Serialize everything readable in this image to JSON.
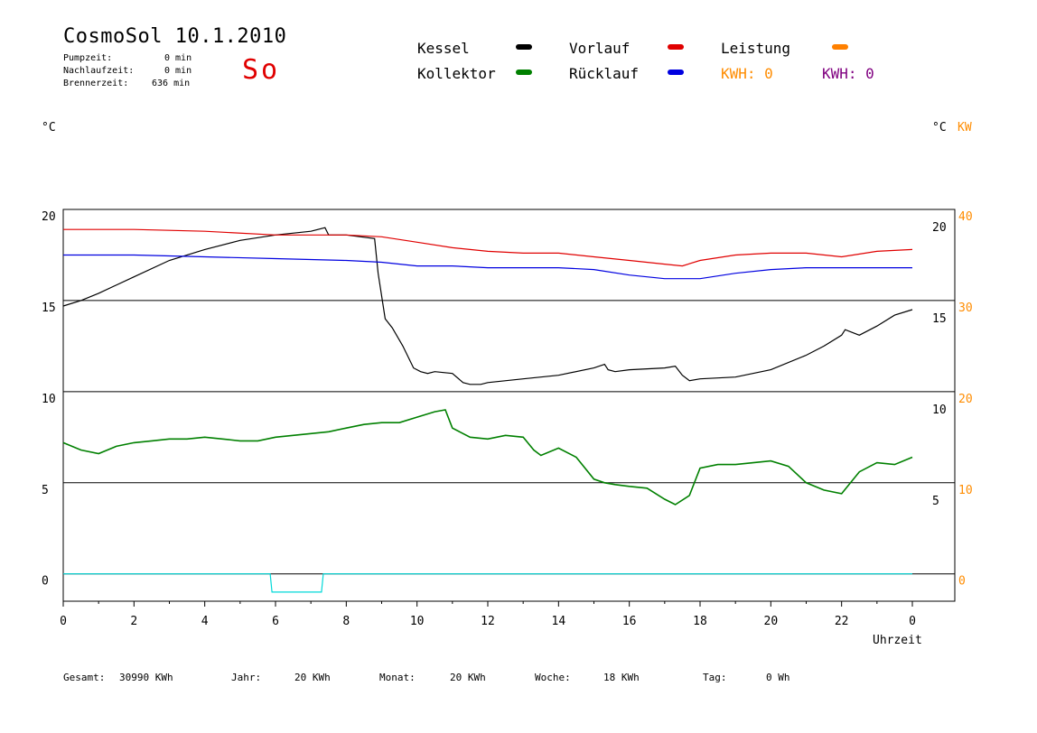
{
  "header": {
    "title": "CosmoSol 10.1.2010",
    "stats": [
      {
        "label": "Pumpzeit:",
        "value": "0 min"
      },
      {
        "label": "Nachlaufzeit:",
        "value": "0 min"
      },
      {
        "label": "Brennerzeit:",
        "value": "636 min"
      }
    ],
    "status": "So"
  },
  "legend": {
    "items": [
      {
        "label": "Kessel",
        "color": "#000000"
      },
      {
        "label": "Kollektor",
        "color": "#008000"
      },
      {
        "label": "Vorlauf",
        "color": "#e00000"
      },
      {
        "label": "Rücklauf",
        "color": "#0000e0"
      },
      {
        "label": "Leistung",
        "color": "#ff8000"
      }
    ],
    "kwh": [
      {
        "text": "KWH: 0",
        "color": "#ff8c00"
      },
      {
        "text": "KWH: 0",
        "color": "#800080"
      }
    ]
  },
  "axis_units": {
    "left": "°C",
    "right": "°C",
    "right2": "KW"
  },
  "footer": [
    {
      "label": "Gesamt:",
      "value": "30990 KWh"
    },
    {
      "label": "Jahr:",
      "value": "20 KWh"
    },
    {
      "label": "Monat:",
      "value": "20 KWh"
    },
    {
      "label": "Woche:",
      "value": "18 KWh"
    },
    {
      "label": "Tag:",
      "value": "0 Wh"
    }
  ],
  "chart_data": {
    "type": "line",
    "xlabel": "Uhrzeit",
    "xlim": [
      0,
      24
    ],
    "x_ticks": [
      "0",
      "2",
      "4",
      "6",
      "8",
      "10",
      "12",
      "14",
      "16",
      "18",
      "20",
      "22",
      "0"
    ],
    "ylim": [
      -1.5,
      20
    ],
    "left_ticks": [
      {
        "v": 20,
        "label": "20"
      },
      {
        "v": 15,
        "label": "15"
      },
      {
        "v": 10,
        "label": "10"
      },
      {
        "v": 5,
        "label": "5"
      },
      {
        "v": 0,
        "label": "0"
      }
    ],
    "right_ticks": [
      {
        "v": 20,
        "label": "20"
      },
      {
        "v": 15,
        "label": "15"
      },
      {
        "v": 10,
        "label": "10"
      },
      {
        "v": 5,
        "label": "5"
      }
    ],
    "right2_ticks": [
      {
        "v": 20,
        "label": "40"
      },
      {
        "v": 15,
        "label": "30"
      },
      {
        "v": 10,
        "label": "20"
      },
      {
        "v": 5,
        "label": "10"
      },
      {
        "v": 0,
        "label": "0"
      }
    ],
    "grid_lines": [
      20,
      15,
      10,
      5,
      0
    ],
    "series": [
      {
        "name": "Kessel",
        "color": "#000000",
        "x": [
          0,
          0.5,
          1,
          2,
          3,
          4,
          5,
          6,
          7,
          7.4,
          7.5,
          8,
          8.8,
          8.9,
          9.1,
          9.3,
          9.6,
          9.9,
          10.1,
          10.3,
          10.5,
          11,
          11.3,
          11.5,
          11.8,
          12,
          13,
          14,
          15,
          15.3,
          15.4,
          15.6,
          16,
          17,
          17.3,
          17.5,
          17.7,
          18,
          19,
          20,
          21,
          21.5,
          22,
          22.1,
          22.5,
          23,
          23.5,
          24
        ],
        "y": [
          14.7,
          15.0,
          15.4,
          16.3,
          17.2,
          17.8,
          18.3,
          18.6,
          18.8,
          19.0,
          18.6,
          18.6,
          18.4,
          16.5,
          14.0,
          13.5,
          12.5,
          11.3,
          11.1,
          11.0,
          11.1,
          11.0,
          10.5,
          10.4,
          10.4,
          10.5,
          10.7,
          10.9,
          11.3,
          11.5,
          11.2,
          11.1,
          11.2,
          11.3,
          11.4,
          10.9,
          10.6,
          10.7,
          10.8,
          11.2,
          12.0,
          12.5,
          13.1,
          13.4,
          13.1,
          13.6,
          14.2,
          14.5
        ]
      },
      {
        "name": "Vorlauf",
        "color": "#e00000",
        "x": [
          0,
          2,
          4,
          6,
          8,
          9,
          10,
          11,
          12,
          13,
          14,
          15,
          16,
          17,
          17.5,
          18,
          19,
          20,
          21,
          22,
          23,
          24
        ],
        "y": [
          18.9,
          18.9,
          18.8,
          18.6,
          18.6,
          18.5,
          18.2,
          17.9,
          17.7,
          17.6,
          17.6,
          17.4,
          17.2,
          17.0,
          16.9,
          17.2,
          17.5,
          17.6,
          17.6,
          17.4,
          17.7,
          17.8
        ]
      },
      {
        "name": "Rücklauf",
        "color": "#0000e0",
        "x": [
          0,
          2,
          4,
          6,
          8,
          9,
          10,
          11,
          12,
          13,
          14,
          15,
          16,
          17,
          18,
          19,
          20,
          21,
          22,
          23,
          24
        ],
        "y": [
          17.5,
          17.5,
          17.4,
          17.3,
          17.2,
          17.1,
          16.9,
          16.9,
          16.8,
          16.8,
          16.8,
          16.7,
          16.4,
          16.2,
          16.2,
          16.5,
          16.7,
          16.8,
          16.8,
          16.8,
          16.8
        ]
      },
      {
        "name": "Kollektor",
        "color": "#008000",
        "x": [
          0,
          0.5,
          1,
          1.5,
          2,
          2.5,
          3,
          3.5,
          4,
          4.5,
          5,
          5.5,
          6,
          6.5,
          7,
          7.5,
          8,
          8.5,
          9,
          9.5,
          10,
          10.5,
          10.8,
          11,
          11.2,
          11.5,
          12,
          12.5,
          13,
          13.3,
          13.5,
          14,
          14.5,
          15,
          15.3,
          15.6,
          16,
          16.5,
          17,
          17.3,
          17.7,
          18,
          18.5,
          19,
          19.5,
          20,
          20.5,
          21,
          21.5,
          22,
          22.5,
          23,
          23.5,
          24
        ],
        "y": [
          7.2,
          6.8,
          6.6,
          7.0,
          7.2,
          7.3,
          7.4,
          7.4,
          7.5,
          7.4,
          7.3,
          7.3,
          7.5,
          7.6,
          7.7,
          7.8,
          8.0,
          8.2,
          8.3,
          8.3,
          8.6,
          8.9,
          9.0,
          8.0,
          7.8,
          7.5,
          7.4,
          7.6,
          7.5,
          6.8,
          6.5,
          6.9,
          6.4,
          5.2,
          5.0,
          4.9,
          4.8,
          4.7,
          4.1,
          3.8,
          4.3,
          5.8,
          6.0,
          6.0,
          6.1,
          6.2,
          5.9,
          5.0,
          4.6,
          4.4,
          5.6,
          6.1,
          6.0,
          6.4
        ]
      },
      {
        "name": "Leistung",
        "color": "#00d8d8",
        "x": [
          0,
          5.85,
          5.9,
          7.3,
          7.35,
          24
        ],
        "y": [
          0,
          0,
          -1,
          -1,
          0,
          0
        ]
      }
    ]
  }
}
